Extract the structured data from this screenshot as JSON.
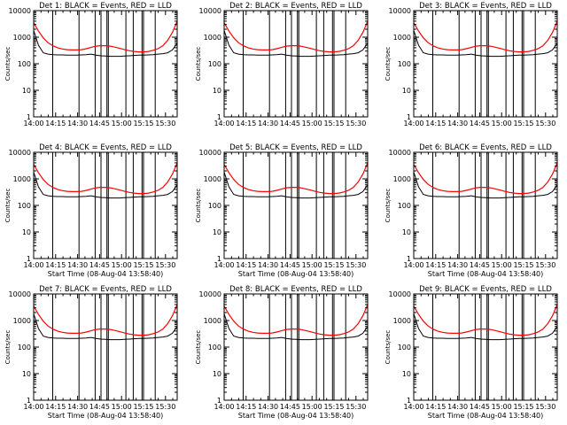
{
  "chart_data": [
    {
      "type": "line",
      "title": "Det 1: BLACK = Events, RED = LLD",
      "xlabel": "",
      "ylabel": "Counts/sec",
      "yscale": "log",
      "ylim": [
        1,
        10000
      ],
      "x_ticks": [
        "14:00",
        "14:15",
        "14:30",
        "14:45",
        "15:00",
        "15:15",
        "15:30"
      ],
      "xlim": [
        "14:00",
        "15:38"
      ],
      "y_ticks": [
        "1",
        "10",
        "100",
        "1000",
        "10000"
      ],
      "red_values": [
        3500,
        1700,
        950,
        620,
        480,
        400,
        360,
        340,
        330,
        330,
        340,
        370,
        410,
        460,
        480,
        480,
        460,
        420,
        380,
        340,
        310,
        290,
        280,
        280,
        290,
        320,
        370,
        480,
        750,
        1500,
        4000
      ],
      "black_values": [
        1800,
        500,
        260,
        230,
        220,
        215,
        215,
        210,
        210,
        210,
        215,
        220,
        230,
        210,
        200,
        195,
        190,
        190,
        190,
        195,
        200,
        205,
        210,
        210,
        215,
        220,
        230,
        240,
        260,
        330,
        600
      ],
      "vlines": [
        "14:13",
        "14:31",
        "14:42",
        "14:46",
        "14:50",
        "14:51",
        "15:03",
        "15:08",
        "15:14",
        "15:15",
        "15:23"
      ]
    },
    {
      "type": "line",
      "title": "Det 2: BLACK = Events, RED = LLD",
      "xlabel": "",
      "ylabel": "Counts/sec",
      "yscale": "log",
      "ylim": [
        1,
        10000
      ],
      "x_ticks": [
        "14:00",
        "14:15",
        "14:30",
        "14:45",
        "15:00",
        "15:15",
        "15:30"
      ],
      "xlim": [
        "14:00",
        "15:38"
      ],
      "y_ticks": [
        "1",
        "10",
        "100",
        "1000",
        "10000"
      ],
      "red_values": [
        3500,
        1700,
        950,
        620,
        480,
        400,
        360,
        340,
        330,
        330,
        340,
        370,
        410,
        460,
        480,
        480,
        460,
        420,
        380,
        340,
        310,
        290,
        280,
        280,
        290,
        320,
        370,
        480,
        750,
        1500,
        4000
      ],
      "black_values": [
        1800,
        500,
        260,
        230,
        220,
        215,
        215,
        210,
        210,
        210,
        215,
        220,
        230,
        210,
        200,
        195,
        190,
        190,
        190,
        195,
        200,
        205,
        210,
        210,
        215,
        220,
        230,
        240,
        260,
        330,
        600
      ],
      "vlines": [
        "14:13",
        "14:31",
        "14:42",
        "14:46",
        "14:50",
        "14:51",
        "15:03",
        "15:08",
        "15:14",
        "15:15",
        "15:23"
      ]
    },
    {
      "type": "line",
      "title": "Det 3: BLACK = Events, RED = LLD",
      "xlabel": "",
      "ylabel": "Counts/sec",
      "yscale": "log",
      "ylim": [
        1,
        10000
      ],
      "x_ticks": [
        "14:00",
        "14:15",
        "14:30",
        "14:45",
        "15:00",
        "15:15",
        "15:30"
      ],
      "xlim": [
        "14:00",
        "15:38"
      ],
      "y_ticks": [
        "1",
        "10",
        "100",
        "1000",
        "10000"
      ],
      "red_values": [
        3500,
        1700,
        950,
        620,
        480,
        400,
        360,
        340,
        330,
        330,
        340,
        370,
        410,
        460,
        480,
        480,
        460,
        420,
        380,
        340,
        310,
        290,
        280,
        280,
        290,
        320,
        370,
        480,
        750,
        1500,
        4000
      ],
      "black_values": [
        1800,
        500,
        260,
        230,
        220,
        215,
        215,
        210,
        210,
        210,
        215,
        220,
        230,
        210,
        200,
        195,
        190,
        190,
        190,
        195,
        200,
        205,
        210,
        210,
        215,
        220,
        230,
        240,
        260,
        330,
        600
      ],
      "vlines": [
        "14:13",
        "14:31",
        "14:42",
        "14:46",
        "14:50",
        "14:51",
        "15:03",
        "15:08",
        "15:14",
        "15:15",
        "15:23"
      ]
    },
    {
      "type": "line",
      "title": "Det 4: BLACK = Events, RED = LLD",
      "xlabel": "Start Time (08-Aug-04 13:58:40)",
      "ylabel": "Counts/sec",
      "yscale": "log",
      "ylim": [
        1,
        10000
      ],
      "x_ticks": [
        "14:00",
        "14:15",
        "14:30",
        "14:45",
        "15:00",
        "15:15",
        "15:30"
      ],
      "xlim": [
        "14:00",
        "15:38"
      ],
      "y_ticks": [
        "1",
        "10",
        "100",
        "1000",
        "10000"
      ],
      "red_values": [
        3500,
        1700,
        950,
        620,
        480,
        400,
        360,
        340,
        330,
        330,
        340,
        370,
        410,
        460,
        480,
        480,
        460,
        420,
        380,
        340,
        310,
        290,
        280,
        280,
        290,
        320,
        370,
        480,
        750,
        1500,
        4000
      ],
      "black_values": [
        1800,
        500,
        260,
        230,
        220,
        215,
        215,
        210,
        210,
        210,
        215,
        220,
        230,
        210,
        200,
        195,
        190,
        190,
        190,
        195,
        200,
        205,
        210,
        210,
        215,
        220,
        230,
        240,
        260,
        330,
        600
      ],
      "vlines": [
        "14:13",
        "14:31",
        "14:42",
        "14:46",
        "14:50",
        "14:51",
        "15:03",
        "15:08",
        "15:14",
        "15:15",
        "15:23"
      ]
    },
    {
      "type": "line",
      "title": "Det 5: BLACK = Events, RED = LLD",
      "xlabel": "Start Time (08-Aug-04 13:58:40)",
      "ylabel": "Counts/sec",
      "yscale": "log",
      "ylim": [
        1,
        10000
      ],
      "x_ticks": [
        "14:00",
        "14:15",
        "14:30",
        "14:45",
        "15:00",
        "15:15",
        "15:30"
      ],
      "xlim": [
        "14:00",
        "15:38"
      ],
      "y_ticks": [
        "1",
        "10",
        "100",
        "1000",
        "10000"
      ],
      "red_values": [
        3500,
        1700,
        950,
        620,
        480,
        400,
        360,
        340,
        330,
        330,
        340,
        370,
        410,
        460,
        480,
        480,
        460,
        420,
        380,
        340,
        310,
        290,
        280,
        280,
        290,
        320,
        370,
        480,
        750,
        1500,
        4000
      ],
      "black_values": [
        1800,
        500,
        260,
        230,
        220,
        215,
        215,
        210,
        210,
        210,
        215,
        220,
        230,
        210,
        200,
        195,
        190,
        190,
        190,
        195,
        200,
        205,
        210,
        210,
        215,
        220,
        230,
        240,
        260,
        330,
        600
      ],
      "vlines": [
        "14:13",
        "14:31",
        "14:42",
        "14:46",
        "14:50",
        "14:51",
        "15:03",
        "15:08",
        "15:14",
        "15:15",
        "15:23"
      ]
    },
    {
      "type": "line",
      "title": "Det 6: BLACK = Events, RED = LLD",
      "xlabel": "Start Time (08-Aug-04 13:58:40)",
      "ylabel": "Counts/sec",
      "yscale": "log",
      "ylim": [
        1,
        10000
      ],
      "x_ticks": [
        "14:00",
        "14:15",
        "14:30",
        "14:45",
        "15:00",
        "15:15",
        "15:30"
      ],
      "xlim": [
        "14:00",
        "15:38"
      ],
      "y_ticks": [
        "1",
        "10",
        "100",
        "1000",
        "10000"
      ],
      "red_values": [
        3500,
        1700,
        950,
        620,
        480,
        400,
        360,
        340,
        330,
        330,
        340,
        370,
        410,
        460,
        480,
        480,
        460,
        420,
        380,
        340,
        310,
        290,
        280,
        280,
        290,
        320,
        370,
        480,
        750,
        1500,
        4000
      ],
      "black_values": [
        1800,
        500,
        260,
        230,
        220,
        215,
        215,
        210,
        210,
        210,
        215,
        220,
        230,
        210,
        200,
        195,
        190,
        190,
        190,
        195,
        200,
        205,
        210,
        210,
        215,
        220,
        230,
        240,
        260,
        330,
        600
      ],
      "vlines": [
        "14:13",
        "14:31",
        "14:42",
        "14:46",
        "14:50",
        "14:51",
        "15:03",
        "15:08",
        "15:14",
        "15:15",
        "15:23"
      ]
    },
    {
      "type": "line",
      "title": "Det 7: BLACK = Events, RED = LLD",
      "xlabel": "Start Time (08-Aug-04 13:58:40)",
      "ylabel": "Counts/sec",
      "yscale": "log",
      "ylim": [
        1,
        10000
      ],
      "x_ticks": [
        "14:00",
        "14:15",
        "14:30",
        "14:45",
        "15:00",
        "15:15",
        "15:30"
      ],
      "xlim": [
        "14:00",
        "15:38"
      ],
      "y_ticks": [
        "1",
        "10",
        "100",
        "1000",
        "10000"
      ],
      "red_values": [
        3500,
        1700,
        950,
        620,
        480,
        400,
        360,
        340,
        330,
        330,
        340,
        370,
        410,
        460,
        480,
        480,
        460,
        420,
        380,
        340,
        310,
        290,
        280,
        280,
        290,
        320,
        370,
        480,
        750,
        1500,
        4000
      ],
      "black_values": [
        1800,
        500,
        260,
        230,
        220,
        215,
        215,
        210,
        210,
        210,
        215,
        220,
        230,
        210,
        200,
        195,
        190,
        190,
        190,
        195,
        200,
        205,
        210,
        210,
        215,
        220,
        230,
        240,
        260,
        330,
        600
      ],
      "vlines": [
        "14:13",
        "14:31",
        "14:42",
        "14:46",
        "14:50",
        "14:51",
        "15:03",
        "15:08",
        "15:14",
        "15:15",
        "15:23"
      ]
    },
    {
      "type": "line",
      "title": "Det 8: BLACK = Events, RED = LLD",
      "xlabel": "Start Time (08-Aug-04 13:58:40)",
      "ylabel": "Counts/sec",
      "yscale": "log",
      "ylim": [
        1,
        10000
      ],
      "x_ticks": [
        "14:00",
        "14:15",
        "14:30",
        "14:45",
        "15:00",
        "15:15",
        "15:30"
      ],
      "xlim": [
        "14:00",
        "15:38"
      ],
      "y_ticks": [
        "1",
        "10",
        "100",
        "1000",
        "10000"
      ],
      "red_values": [
        3500,
        1700,
        950,
        620,
        480,
        400,
        360,
        340,
        330,
        330,
        340,
        370,
        410,
        460,
        480,
        480,
        460,
        420,
        380,
        340,
        310,
        290,
        280,
        280,
        290,
        320,
        370,
        480,
        750,
        1500,
        4000
      ],
      "black_values": [
        1800,
        500,
        260,
        230,
        220,
        215,
        215,
        210,
        210,
        210,
        215,
        220,
        230,
        210,
        200,
        195,
        190,
        190,
        190,
        195,
        200,
        205,
        210,
        210,
        215,
        220,
        230,
        240,
        260,
        330,
        600
      ],
      "vlines": [
        "14:13",
        "14:31",
        "14:42",
        "14:46",
        "14:50",
        "14:51",
        "15:03",
        "15:08",
        "15:14",
        "15:15",
        "15:23"
      ]
    },
    {
      "type": "line",
      "title": "Det 9: BLACK = Events, RED = LLD",
      "xlabel": "Start Time (08-Aug-04 13:58:40)",
      "ylabel": "Counts/sec",
      "yscale": "log",
      "ylim": [
        1,
        10000
      ],
      "x_ticks": [
        "14:00",
        "14:15",
        "14:30",
        "14:45",
        "15:00",
        "15:15",
        "15:30"
      ],
      "xlim": [
        "14:00",
        "15:38"
      ],
      "y_ticks": [
        "1",
        "10",
        "100",
        "1000",
        "10000"
      ],
      "red_values": [
        3500,
        1700,
        950,
        620,
        480,
        400,
        360,
        340,
        330,
        330,
        340,
        370,
        410,
        460,
        480,
        480,
        460,
        420,
        380,
        340,
        310,
        290,
        280,
        280,
        290,
        320,
        370,
        480,
        750,
        1500,
        4000
      ],
      "black_values": [
        1800,
        500,
        260,
        230,
        220,
        215,
        215,
        210,
        210,
        210,
        215,
        220,
        230,
        210,
        200,
        195,
        190,
        190,
        190,
        195,
        200,
        205,
        210,
        210,
        215,
        220,
        230,
        240,
        260,
        330,
        600
      ],
      "vlines": [
        "14:13",
        "14:31",
        "14:42",
        "14:46",
        "14:50",
        "14:51",
        "15:03",
        "15:08",
        "15:14",
        "15:15",
        "15:23"
      ]
    }
  ],
  "colors": {
    "events": "#000000",
    "lld": "#ff0000",
    "axes": "#000000",
    "background": "#ffffff"
  }
}
